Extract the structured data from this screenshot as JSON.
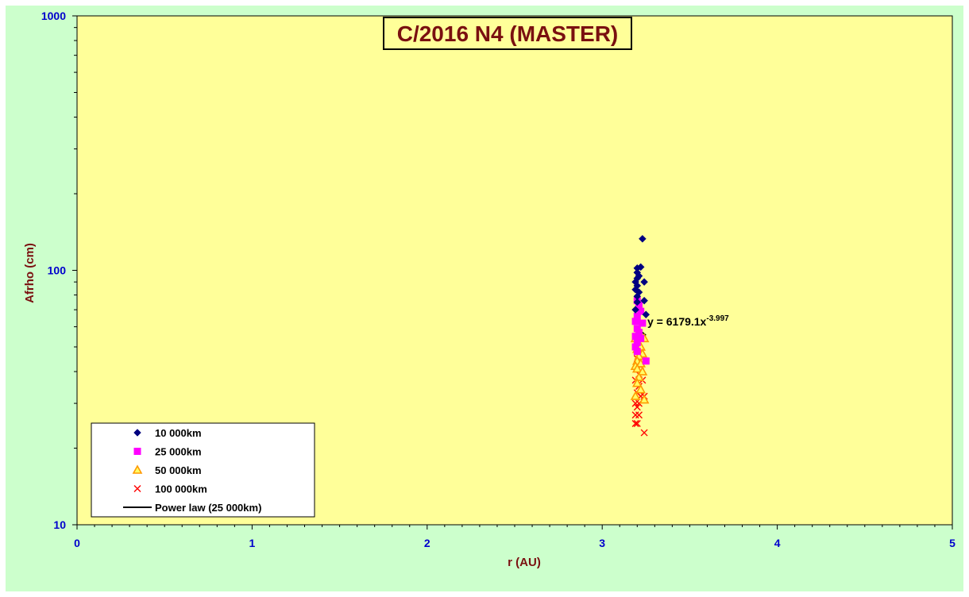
{
  "chart_data": {
    "type": "scatter",
    "title": "C/2016 N4 (MASTER)",
    "xlabel": "r (AU)",
    "ylabel": "Afrho (cm)",
    "xlim": [
      0,
      5
    ],
    "ylim": [
      10,
      1000
    ],
    "yscale": "log",
    "x_ticks": [
      "0",
      "1",
      "2",
      "3",
      "4",
      "5"
    ],
    "y_ticks": [
      "10",
      "100",
      "1000"
    ],
    "grid": false,
    "legend_position": "bottom-left",
    "annotation": {
      "text": "y = 6179.1x",
      "exponent": "-3.997"
    },
    "series": [
      {
        "name": "10 000km",
        "marker": "diamond",
        "color": "#000080",
        "points": [
          {
            "x": 3.23,
            "y": 133
          },
          {
            "x": 3.2,
            "y": 102
          },
          {
            "x": 3.22,
            "y": 103
          },
          {
            "x": 3.2,
            "y": 98
          },
          {
            "x": 3.21,
            "y": 95
          },
          {
            "x": 3.2,
            "y": 93
          },
          {
            "x": 3.19,
            "y": 90
          },
          {
            "x": 3.24,
            "y": 90
          },
          {
            "x": 3.2,
            "y": 87
          },
          {
            "x": 3.19,
            "y": 84
          },
          {
            "x": 3.21,
            "y": 82
          },
          {
            "x": 3.2,
            "y": 79
          },
          {
            "x": 3.24,
            "y": 76
          },
          {
            "x": 3.2,
            "y": 75
          },
          {
            "x": 3.19,
            "y": 70
          },
          {
            "x": 3.25,
            "y": 67
          }
        ]
      },
      {
        "name": "25 000km",
        "marker": "square",
        "color": "#ff00ff",
        "points": [
          {
            "x": 3.2,
            "y": 76
          },
          {
            "x": 3.21,
            "y": 73
          },
          {
            "x": 3.22,
            "y": 69
          },
          {
            "x": 3.2,
            "y": 66
          },
          {
            "x": 3.19,
            "y": 63
          },
          {
            "x": 3.23,
            "y": 62
          },
          {
            "x": 3.2,
            "y": 59
          },
          {
            "x": 3.21,
            "y": 57
          },
          {
            "x": 3.19,
            "y": 55
          },
          {
            "x": 3.22,
            "y": 54
          },
          {
            "x": 3.2,
            "y": 52
          },
          {
            "x": 3.19,
            "y": 50
          },
          {
            "x": 3.2,
            "y": 48
          },
          {
            "x": 3.25,
            "y": 44
          }
        ]
      },
      {
        "name": "50 000km",
        "marker": "triangle",
        "color": "#ff9900",
        "points": [
          {
            "x": 3.21,
            "y": 57
          },
          {
            "x": 3.19,
            "y": 54
          },
          {
            "x": 3.24,
            "y": 54
          },
          {
            "x": 3.22,
            "y": 50
          },
          {
            "x": 3.2,
            "y": 49
          },
          {
            "x": 3.23,
            "y": 47
          },
          {
            "x": 3.21,
            "y": 46
          },
          {
            "x": 3.2,
            "y": 44
          },
          {
            "x": 3.22,
            "y": 43
          },
          {
            "x": 3.19,
            "y": 42
          },
          {
            "x": 3.2,
            "y": 41
          },
          {
            "x": 3.23,
            "y": 40
          },
          {
            "x": 3.21,
            "y": 38
          },
          {
            "x": 3.2,
            "y": 36
          },
          {
            "x": 3.22,
            "y": 34
          },
          {
            "x": 3.19,
            "y": 32
          },
          {
            "x": 3.24,
            "y": 31
          }
        ]
      },
      {
        "name": "100 000km",
        "marker": "x",
        "color": "#ff0000",
        "points": [
          {
            "x": 3.2,
            "y": 45
          },
          {
            "x": 3.22,
            "y": 42
          },
          {
            "x": 3.21,
            "y": 39
          },
          {
            "x": 3.19,
            "y": 37
          },
          {
            "x": 3.23,
            "y": 37
          },
          {
            "x": 3.21,
            "y": 35
          },
          {
            "x": 3.2,
            "y": 33
          },
          {
            "x": 3.22,
            "y": 32
          },
          {
            "x": 3.24,
            "y": 32
          },
          {
            "x": 3.19,
            "y": 30
          },
          {
            "x": 3.21,
            "y": 30
          },
          {
            "x": 3.2,
            "y": 29
          },
          {
            "x": 3.19,
            "y": 27
          },
          {
            "x": 3.21,
            "y": 27
          },
          {
            "x": 3.19,
            "y": 25
          },
          {
            "x": 3.2,
            "y": 25
          },
          {
            "x": 3.24,
            "y": 23
          }
        ]
      },
      {
        "name": "Power law (25 000km)",
        "marker": "line",
        "color": "#000000",
        "fit": {
          "a": 6179.1,
          "b": -3.997,
          "x_range": [
            3.19,
            3.25
          ]
        }
      }
    ]
  }
}
